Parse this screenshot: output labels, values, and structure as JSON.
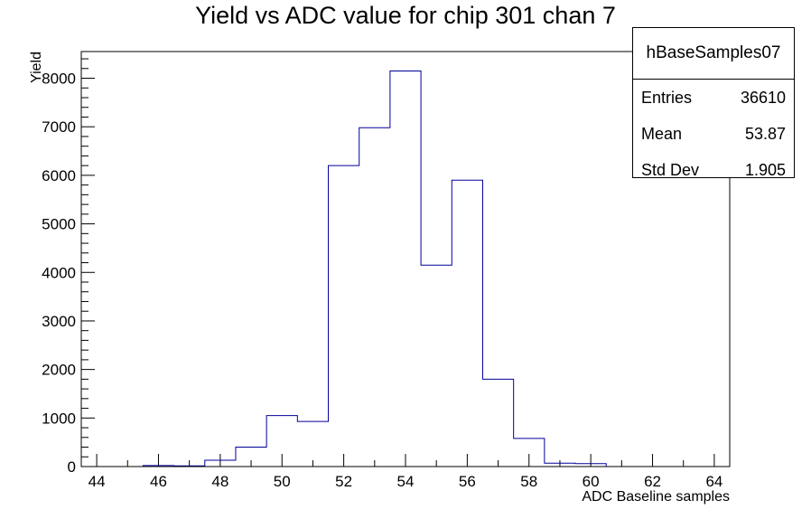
{
  "chart_data": {
    "type": "bar",
    "title": "Yield vs ADC value for chip 301 chan 7",
    "xlabel": "ADC Baseline samples",
    "ylabel": "Yield",
    "xlim": [
      43.5,
      64.5
    ],
    "ylim": [
      0,
      8550
    ],
    "x_ticks": [
      "44",
      "46",
      "48",
      "50",
      "52",
      "54",
      "56",
      "58",
      "60",
      "62",
      "64"
    ],
    "y_ticks": [
      "0",
      "1000",
      "2000",
      "3000",
      "4000",
      "5000",
      "6000",
      "7000",
      "8000"
    ],
    "bin_width": 1,
    "bin_centers": [
      44,
      45,
      46,
      47,
      48,
      49,
      50,
      51,
      52,
      53,
      54,
      55,
      56,
      57,
      58,
      59,
      60,
      61,
      62,
      63,
      64
    ],
    "values": [
      0,
      0,
      20,
      15,
      130,
      400,
      1050,
      930,
      6200,
      6980,
      8150,
      4150,
      5900,
      1800,
      580,
      70,
      60,
      0,
      0,
      0,
      0
    ],
    "line_color": "#000099"
  },
  "stats": {
    "name": "hBaseSamples07",
    "entries_label": "Entries",
    "entries_value": "36610",
    "mean_label": "Mean",
    "mean_value": "53.87",
    "stddev_label": "Std Dev",
    "stddev_value": "1.905"
  }
}
